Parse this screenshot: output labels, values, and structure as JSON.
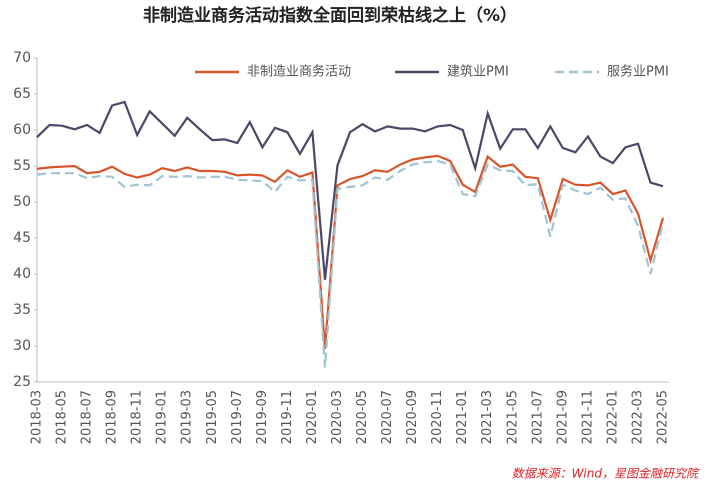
{
  "chart_data": {
    "type": "line",
    "title": "非制造业商务活动指数全面回到荣枯线之上（%）",
    "source": "数据来源：Wind，星图金融研究院",
    "categories": [
      "2018-03",
      null,
      "2018-05",
      null,
      "2018-07",
      null,
      "2018-09",
      null,
      "2018-11",
      null,
      "2019-01",
      null,
      "2019-03",
      null,
      "2019-05",
      null,
      "2019-07",
      null,
      "2019-09",
      null,
      "2019-11",
      null,
      "2020-01",
      null,
      "2020-03",
      null,
      "2020-05",
      null,
      "2020-07",
      null,
      "2020-09",
      null,
      "2020-11",
      null,
      "2021-01",
      null,
      "2021-03",
      null,
      "2021-05",
      null,
      "2021-07",
      null,
      "2021-09",
      null,
      "2021-11",
      null,
      "2022-01",
      null,
      "2022-03",
      null,
      "2022-05"
    ],
    "series": [
      {
        "name": "非制造业商务活动",
        "color": "#d8552a",
        "dash": false,
        "values": [
          54.6,
          54.8,
          54.9,
          55.0,
          54.0,
          54.2,
          54.9,
          53.9,
          53.4,
          53.8,
          54.7,
          54.3,
          54.8,
          54.3,
          54.3,
          54.2,
          53.7,
          53.8,
          53.7,
          52.8,
          54.4,
          53.5,
          54.1,
          29.6,
          52.3,
          53.2,
          53.6,
          54.4,
          54.2,
          55.2,
          55.9,
          56.2,
          56.4,
          55.7,
          52.4,
          51.4,
          56.3,
          54.9,
          55.2,
          53.5,
          53.3,
          47.5,
          53.2,
          52.4,
          52.3,
          52.7,
          51.1,
          51.6,
          48.4,
          41.9,
          47.8
        ]
      },
      {
        "name": "建筑业PMI",
        "color": "#4a4868",
        "dash": false,
        "values": [
          59.0,
          60.7,
          60.6,
          60.1,
          60.7,
          59.6,
          63.4,
          63.9,
          59.3,
          62.6,
          60.9,
          59.2,
          61.7,
          60.1,
          58.6,
          58.7,
          58.2,
          61.1,
          57.6,
          60.3,
          59.7,
          56.7,
          59.7,
          39.2,
          55.1,
          59.7,
          60.8,
          59.8,
          60.5,
          60.2,
          60.2,
          59.8,
          60.5,
          60.7,
          60.0,
          54.7,
          62.3,
          57.4,
          60.1,
          60.1,
          57.5,
          60.5,
          57.5,
          56.9,
          59.1,
          56.3,
          55.4,
          57.6,
          58.1,
          52.7,
          52.2
        ]
      },
      {
        "name": "服务业PMI",
        "color": "#9fc4d3",
        "dash": true,
        "values": [
          53.8,
          54.0,
          54.0,
          54.0,
          53.3,
          53.6,
          53.5,
          52.1,
          52.4,
          52.3,
          53.6,
          53.5,
          53.6,
          53.4,
          53.5,
          53.5,
          53.1,
          53.0,
          52.9,
          51.4,
          53.5,
          53.0,
          53.1,
          27.0,
          51.8,
          52.1,
          52.3,
          53.4,
          53.1,
          54.3,
          55.2,
          55.5,
          55.7,
          55.2,
          51.1,
          50.8,
          55.2,
          54.4,
          54.3,
          52.3,
          52.5,
          45.2,
          52.4,
          51.6,
          51.1,
          52.0,
          50.3,
          50.5,
          46.7,
          40.0,
          47.1
        ]
      }
    ],
    "ylim": [
      25,
      70
    ],
    "yticks": [
      25,
      30,
      35,
      40,
      45,
      50,
      55,
      60,
      65,
      70
    ],
    "grid": false
  }
}
